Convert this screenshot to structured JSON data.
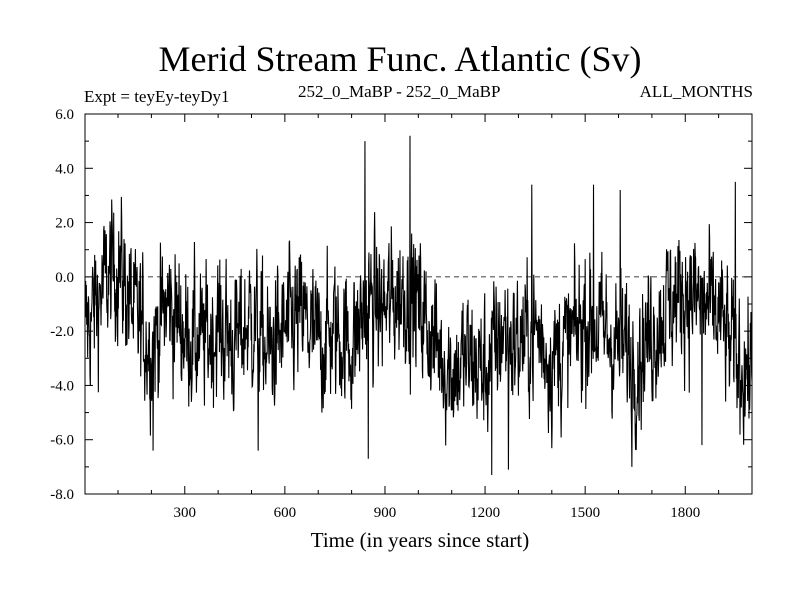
{
  "chart_data": {
    "type": "line",
    "title": "Merid Stream Func. Atlantic (Sv)",
    "subtitle_left": "Expt = teyEy-teyDy1",
    "subtitle_center": "252_0_MaBP - 252_0_MaBP",
    "subtitle_right": "ALL_MONTHS",
    "xlabel": "Time (in years since start)",
    "ylabel": "",
    "xlim": [
      1,
      2000
    ],
    "ylim": [
      -8.0,
      6.0
    ],
    "xticks": [
      300,
      600,
      900,
      1200,
      1500,
      1800
    ],
    "yticks": [
      -8.0,
      -6.0,
      -4.0,
      -2.0,
      0.0,
      2.0,
      4.0,
      6.0
    ],
    "xtick_labels": [
      "300",
      "600",
      "900",
      "1200",
      "1500",
      "1800"
    ],
    "ytick_labels": [
      "-8.0",
      "-6.0",
      "-4.0",
      "-2.0",
      "0.0",
      "2.0",
      "4.0",
      "6.0"
    ],
    "zero_line": "dashed",
    "grid": false,
    "line_color": "#000000",
    "series": [
      {
        "x": [
          1,
          50,
          100,
          150,
          200,
          250,
          300,
          350,
          400,
          450,
          500,
          550,
          600,
          650,
          700,
          750,
          800,
          850,
          900,
          950,
          1000,
          1050,
          1100,
          1150,
          1200,
          1250,
          1300,
          1350,
          1400,
          1450,
          1500,
          1550,
          1600,
          1650,
          1700,
          1750,
          1800,
          1850,
          1900,
          1950,
          2000
        ],
        "values": [
          -2.0,
          -0.5,
          0.5,
          -1.5,
          -2.5,
          -1.0,
          -2.0,
          -2.5,
          -1.8,
          -2.5,
          -1.5,
          -2.8,
          -2.0,
          -1.5,
          -2.5,
          -2.0,
          -2.5,
          -1.0,
          -1.2,
          -0.5,
          -1.0,
          -2.5,
          -3.5,
          -3.0,
          -3.5,
          -2.0,
          -2.5,
          -2.0,
          -3.0,
          -2.5,
          -1.5,
          -2.0,
          -2.5,
          -3.0,
          -2.0,
          -1.0,
          -0.5,
          -1.0,
          -1.5,
          -3.0,
          -3.5
        ]
      }
    ],
    "extremes": [
      {
        "x": 840,
        "value": 5.0
      },
      {
        "x": 975,
        "value": 5.2
      },
      {
        "x": 850,
        "value": -6.7
      },
      {
        "x": 1220,
        "value": -7.3
      },
      {
        "x": 1270,
        "value": -7.1
      },
      {
        "x": 1640,
        "value": -7.0
      },
      {
        "x": 1340,
        "value": 3.4
      },
      {
        "x": 1525,
        "value": 3.4
      },
      {
        "x": 1605,
        "value": 3.2
      },
      {
        "x": 1950,
        "value": 3.5
      },
      {
        "x": 205,
        "value": -6.4
      },
      {
        "x": 520,
        "value": -6.4
      },
      {
        "x": 1850,
        "value": -6.2
      }
    ]
  }
}
